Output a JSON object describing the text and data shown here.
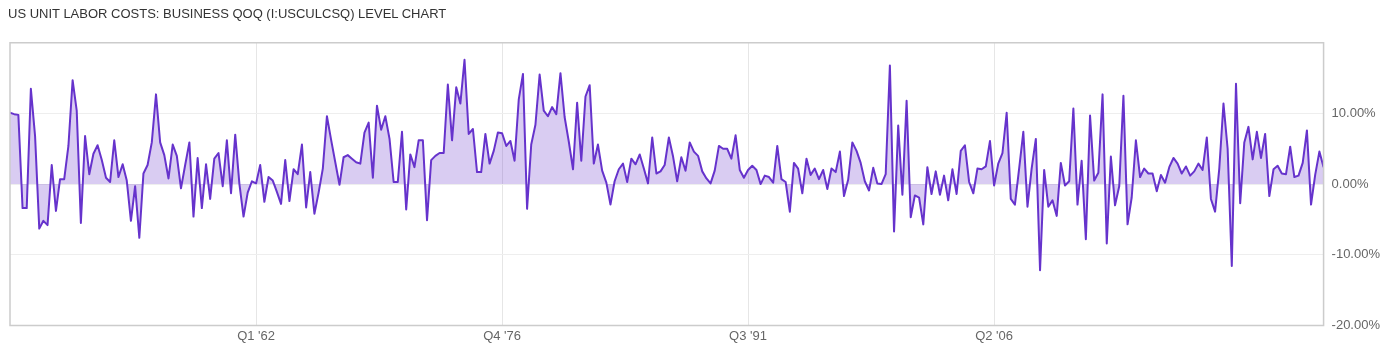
{
  "chart_data": {
    "type": "area",
    "title": "US UNIT LABOR COSTS: BUSINESS QOQ (I:USCULCSQ) LEVEL CHART",
    "x": [
      "1947-04",
      "1947-07",
      "1947-10",
      "1948-01",
      "1948-04",
      "1948-07",
      "1948-10",
      "1949-01",
      "1949-04",
      "1949-07",
      "1949-10",
      "1950-01",
      "1950-04",
      "1950-07",
      "1950-10",
      "1951-01",
      "1951-04",
      "1951-07",
      "1951-10",
      "1952-01",
      "1952-04",
      "1952-07",
      "1952-10",
      "1953-01",
      "1953-04",
      "1953-07",
      "1953-10",
      "1954-01",
      "1954-04",
      "1954-07",
      "1954-10",
      "1955-01",
      "1955-04",
      "1955-07",
      "1955-10",
      "1956-01",
      "1956-04",
      "1956-07",
      "1956-10",
      "1957-01",
      "1957-04",
      "1957-07",
      "1957-10",
      "1958-01",
      "1958-04",
      "1958-07",
      "1958-10",
      "1959-01",
      "1959-04",
      "1959-07",
      "1959-10",
      "1960-01",
      "1960-04",
      "1960-07",
      "1960-10",
      "1961-01",
      "1961-04",
      "1961-07",
      "1961-10",
      "1962-01",
      "1962-04",
      "1962-07",
      "1962-10",
      "1963-01",
      "1963-04",
      "1963-07",
      "1963-10",
      "1964-01",
      "1964-04",
      "1964-07",
      "1964-10",
      "1965-01",
      "1965-04",
      "1965-07",
      "1965-10",
      "1966-01",
      "1966-04",
      "1966-07",
      "1966-10",
      "1967-01",
      "1967-04",
      "1967-07",
      "1967-10",
      "1968-01",
      "1968-04",
      "1968-07",
      "1968-10",
      "1969-01",
      "1969-04",
      "1969-07",
      "1969-10",
      "1970-01",
      "1970-04",
      "1970-07",
      "1970-10",
      "1971-01",
      "1971-04",
      "1971-07",
      "1971-10",
      "1972-01",
      "1972-04",
      "1972-07",
      "1972-10",
      "1973-01",
      "1973-04",
      "1973-07",
      "1973-10",
      "1974-01",
      "1974-04",
      "1974-07",
      "1974-10",
      "1975-01",
      "1975-04",
      "1975-07",
      "1975-10",
      "1976-01",
      "1976-04",
      "1976-07",
      "1976-10",
      "1977-01",
      "1977-04",
      "1977-07",
      "1977-10",
      "1978-01",
      "1978-04",
      "1978-07",
      "1978-10",
      "1979-01",
      "1979-04",
      "1979-07",
      "1979-10",
      "1980-01",
      "1980-04",
      "1980-07",
      "1980-10",
      "1981-01",
      "1981-04",
      "1981-07",
      "1981-10",
      "1982-01",
      "1982-04",
      "1982-07",
      "1982-10",
      "1983-01",
      "1983-04",
      "1983-07",
      "1983-10",
      "1984-01",
      "1984-04",
      "1984-07",
      "1984-10",
      "1985-01",
      "1985-04",
      "1985-07",
      "1985-10",
      "1986-01",
      "1986-04",
      "1986-07",
      "1986-10",
      "1987-01",
      "1987-04",
      "1987-07",
      "1987-10",
      "1988-01",
      "1988-04",
      "1988-07",
      "1988-10",
      "1989-01",
      "1989-04",
      "1989-07",
      "1989-10",
      "1990-01",
      "1990-04",
      "1990-07",
      "1990-10",
      "1991-01",
      "1991-04",
      "1991-07",
      "1991-10",
      "1992-01",
      "1992-04",
      "1992-07",
      "1992-10",
      "1993-01",
      "1993-04",
      "1993-07",
      "1993-10",
      "1994-01",
      "1994-04",
      "1994-07",
      "1994-10",
      "1995-01",
      "1995-04",
      "1995-07",
      "1995-10",
      "1996-01",
      "1996-04",
      "1996-07",
      "1996-10",
      "1997-01",
      "1997-04",
      "1997-07",
      "1997-10",
      "1998-01",
      "1998-04",
      "1998-07",
      "1998-10",
      "1999-01",
      "1999-04",
      "1999-07",
      "1999-10",
      "2000-01",
      "2000-04",
      "2000-07",
      "2000-10",
      "2001-01",
      "2001-04",
      "2001-07",
      "2001-10",
      "2002-01",
      "2002-04",
      "2002-07",
      "2002-10",
      "2003-01",
      "2003-04",
      "2003-07",
      "2003-10",
      "2004-01",
      "2004-04",
      "2004-07",
      "2004-10",
      "2005-01",
      "2005-04",
      "2005-07",
      "2005-10",
      "2006-01",
      "2006-04",
      "2006-07",
      "2006-10",
      "2007-01",
      "2007-04",
      "2007-07",
      "2007-10",
      "2008-01",
      "2008-04",
      "2008-07",
      "2008-10",
      "2009-01",
      "2009-04",
      "2009-07",
      "2009-10",
      "2010-01",
      "2010-04",
      "2010-07",
      "2010-10",
      "2011-01",
      "2011-04",
      "2011-07",
      "2011-10",
      "2012-01",
      "2012-04",
      "2012-07",
      "2012-10",
      "2013-01",
      "2013-04",
      "2013-07",
      "2013-10",
      "2014-01",
      "2014-04",
      "2014-07",
      "2014-10",
      "2015-01",
      "2015-04",
      "2015-07",
      "2015-10",
      "2016-01",
      "2016-04",
      "2016-07",
      "2016-10",
      "2017-01",
      "2017-04",
      "2017-07",
      "2017-10",
      "2018-01",
      "2018-04",
      "2018-07",
      "2018-10",
      "2019-01",
      "2019-04",
      "2019-07",
      "2019-10",
      "2020-01",
      "2020-04",
      "2020-07",
      "2020-10",
      "2021-01",
      "2021-04",
      "2021-07",
      "2021-10",
      "2022-01",
      "2022-04",
      "2022-07",
      "2022-10",
      "2023-01",
      "2023-04",
      "2023-07",
      "2023-10",
      "2024-01",
      "2024-04",
      "2024-07",
      "2024-10",
      "2025-01",
      "2025-04",
      "2025-07",
      "2025-10",
      "2026-01"
    ],
    "series": [
      {
        "color": "#6633cc",
        "values": [
          10.1,
          9.9,
          9.8,
          -3.4,
          -3.4,
          13.5,
          6.8,
          -6.3,
          -5.2,
          -5.8,
          2.7,
          -3.8,
          0.7,
          0.7,
          5.4,
          14.7,
          10.4,
          -5.5,
          6.8,
          1.4,
          4.3,
          5.5,
          3.4,
          0.9,
          0.3,
          6.2,
          1.0,
          2.8,
          0.5,
          -5.2,
          -0.3,
          -7.6,
          1.5,
          2.7,
          5.9,
          12.7,
          5.9,
          4.1,
          0.8,
          5.6,
          4.0,
          -0.6,
          2.7,
          5.9,
          -4.6,
          3.7,
          -3.4,
          2.8,
          -2.1,
          3.6,
          4.4,
          -0.3,
          6.2,
          -1.3,
          7.0,
          0,
          -4.6,
          -1.2,
          0.4,
          0.1,
          2.7,
          -2.5,
          1.0,
          0.5,
          -1.1,
          -2.8,
          3.4,
          -2.4,
          2.1,
          1.4,
          5.6,
          -3.3,
          1.7,
          -4.2,
          -1.2,
          2.2,
          9.6,
          6.3,
          3.1,
          -0.1,
          3.8,
          4.1,
          3.6,
          3.1,
          2.9,
          7.3,
          8.7,
          0.9,
          11.1,
          7.7,
          9.6,
          6.4,
          0.3,
          0.3,
          7.4,
          -3.6,
          4.2,
          2.4,
          6.2,
          6.2,
          -5.1,
          3.4,
          4.0,
          4.4,
          4.4,
          14.1,
          6.2,
          13.7,
          11.4,
          17.6,
          7.1,
          7.8,
          1.7,
          1.7,
          7.1,
          2.9,
          4.7,
          7.3,
          7.2,
          5.4,
          6.1,
          3.3,
          12.0,
          15.6,
          -3.5,
          5.6,
          8.4,
          15.5,
          10.4,
          9.6,
          10.9,
          9.9,
          15.7,
          9.5,
          6.0,
          2.1,
          11.5,
          3.3,
          12.4,
          14.0,
          2.9,
          5.6,
          1.9,
          0.2,
          -2.9,
          0.4,
          2.1,
          2.9,
          0.3,
          3.6,
          2.8,
          4.2,
          2.2,
          0.1,
          6.6,
          1.5,
          1.8,
          2.7,
          6.6,
          3.9,
          0.4,
          3.8,
          1.9,
          5.9,
          4.6,
          4.0,
          1.8,
          0.8,
          0.1,
          1.9,
          5.4,
          5.0,
          5.0,
          3.6,
          6.9,
          2.0,
          0.9,
          2.0,
          2.6,
          2.0,
          0.0,
          1.2,
          1.0,
          0.2,
          5.4,
          0.7,
          0.3,
          -3.9,
          3.0,
          2.2,
          -1.3,
          3.6,
          1.3,
          2.2,
          0.7,
          2.0,
          -0.7,
          2.2,
          1.7,
          4.6,
          -1.7,
          0.6,
          5.9,
          4.7,
          3.0,
          0.4,
          -0.9,
          2.3,
          0.1,
          0.0,
          1.4,
          16.8,
          -6.7,
          8.3,
          -1.5,
          11.8,
          -4.7,
          -1.6,
          -1.9,
          -5.7,
          2.4,
          -1.4,
          1.8,
          -1.5,
          1.2,
          -2.3,
          2.1,
          -1.4,
          4.7,
          5.5,
          0.3,
          -1.3,
          2.2,
          2.1,
          2.5,
          6.1,
          -0.2,
          2.9,
          4.4,
          10.1,
          -2.1,
          -2.9,
          2.2,
          7.4,
          -3.2,
          2.2,
          6.4,
          -12.2,
          2.0,
          -3.2,
          -2.3,
          -4.5,
          3.0,
          -0.2,
          0.4,
          10.7,
          -2.9,
          3.3,
          -7.8,
          9.7,
          0.5,
          1.6,
          12.7,
          -8.4,
          3.9,
          -3.0,
          -0.3,
          12.5,
          -5.7,
          -1.9,
          6.2,
          1.0,
          2.2,
          1.5,
          1.5,
          -1.0,
          1.3,
          0.2,
          2.4,
          3.7,
          2.9,
          1.5,
          2.5,
          1.2,
          1.8,
          2.9,
          2.0,
          6.6,
          -2.1,
          -3.9,
          2.2,
          11.4,
          5.0,
          -11.6,
          14.2,
          -2.7,
          5.9,
          8.1,
          3.5,
          7.4,
          3.7,
          7.1,
          -1.7,
          2.1,
          2.6,
          1.5,
          1.4,
          5.3,
          1.0,
          1.2,
          3.0,
          7.6,
          -2.9,
          1.3,
          4.6,
          2.4
        ]
      }
    ],
    "xlim": [
      "1947-04",
      "2026-01"
    ],
    "xticks": [
      {
        "value": "1962-01",
        "label": "Q1 '62"
      },
      {
        "value": "1976-10",
        "label": "Q4 '76"
      },
      {
        "value": "1991-07",
        "label": "Q3 '91"
      },
      {
        "value": "2006-04",
        "label": "Q2 '06"
      }
    ],
    "ylim": [
      -20,
      20
    ],
    "yticks": [
      {
        "value": -20,
        "label": "-20.00%"
      },
      {
        "value": -10,
        "label": "-10.00%"
      },
      {
        "value": 0,
        "label": "0.00%"
      },
      {
        "value": 10,
        "label": "10.00%"
      }
    ],
    "grid": true
  }
}
